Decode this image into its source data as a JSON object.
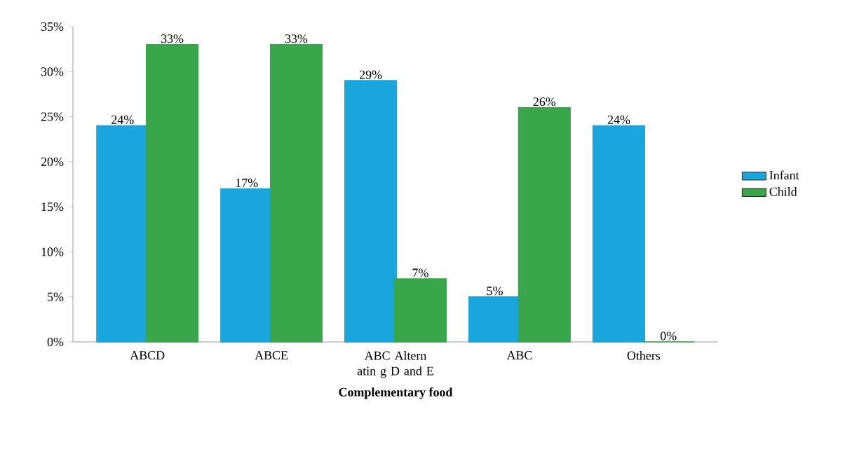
{
  "chart_data": {
    "type": "bar",
    "xlabel": "**Complementary  food**",
    "categories": [
      "ABCD",
      "ABCE",
      "ABC Altern atin g D and E",
      "ABC",
      "Others"
    ],
    "series": [
      {
        "name": "Infant",
        "color": "#1aa6dc",
        "values": [
          24,
          17,
          29,
          5,
          24
        ],
        "value_labels": [
          "24%",
          "17%",
          "29%",
          "5%",
          "24%"
        ]
      },
      {
        "name": "Child",
        "color": "#3aa64c",
        "values": [
          33,
          33,
          7,
          26,
          0
        ],
        "value_labels": [
          "33%",
          "33%",
          "7%",
          "26%",
          "0%"
        ]
      }
    ],
    "ylim": [
      0,
      35
    ],
    "yticks": [
      {
        "value": 0,
        "label": "0%"
      },
      {
        "value": 5,
        "label": "5%"
      },
      {
        "value": 10,
        "label": "10%"
      },
      {
        "value": 15,
        "label": "15%"
      },
      {
        "value": 20,
        "label": "20%"
      },
      {
        "value": 25,
        "label": "25%"
      },
      {
        "value": 30,
        "label": "30%"
      },
      {
        "value": 35,
        "label": "35%"
      }
    ],
    "grid": false,
    "legend": "right",
    "data_labels": true
  }
}
